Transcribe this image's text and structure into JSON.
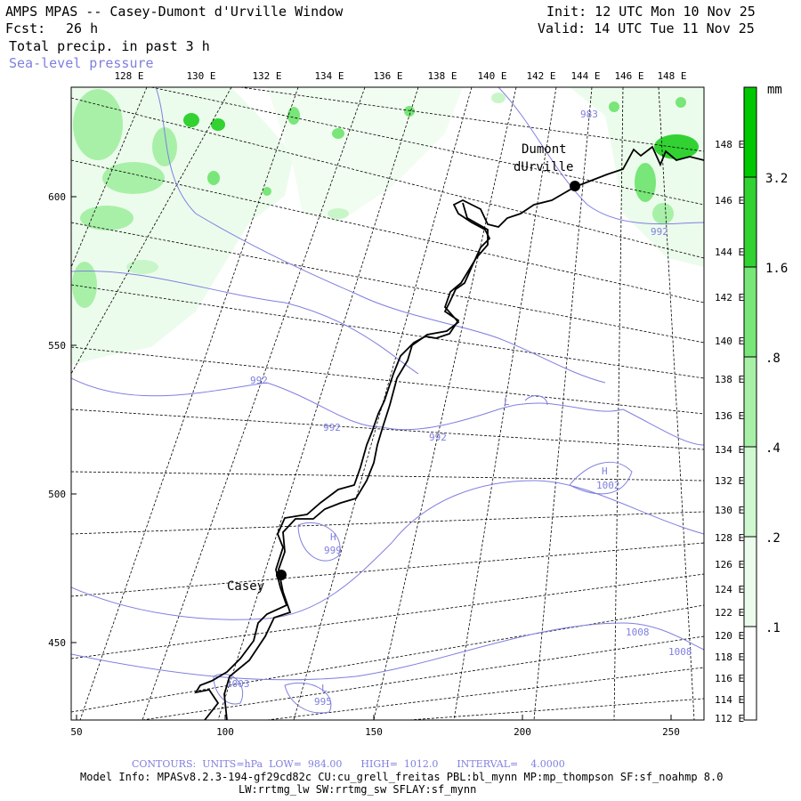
{
  "header": {
    "title": "AMPS MPAS -- Casey-Dumont d'Urville Window",
    "fcst_label": "Fcst:",
    "fcst_value": "26 h",
    "variable": "Total precip. in past 3 h",
    "overlay": "Sea-level pressure",
    "init": "Init: 12 UTC Mon 10 Nov 25",
    "valid": "Valid: 14 UTC Tue 11 Nov 25"
  },
  "map": {
    "x_ticks": [
      "50",
      "100",
      "150",
      "200",
      "250"
    ],
    "y_ticks": [
      "450",
      "500",
      "550",
      "600"
    ],
    "lon_top": [
      "128 E",
      "130 E",
      "132 E",
      "134 E",
      "136 E",
      "138 E",
      "140 E",
      "142 E",
      "144 E",
      "146 E",
      "148 E"
    ],
    "lon_right": [
      "148 E",
      "146 E",
      "144 E",
      "142 E",
      "140 E",
      "138 E",
      "136 E",
      "134 E",
      "132 E",
      "130 E",
      "128 E",
      "126 E",
      "124 E",
      "122 E",
      "120 E",
      "118 E",
      "116 E",
      "114 E",
      "112 E"
    ],
    "stations": [
      {
        "label1": "Dumont",
        "label2": "dUrville"
      },
      {
        "label1": "Casey"
      }
    ],
    "contour_labels": [
      "983",
      "992",
      "992",
      "992",
      "992",
      "H",
      "1002",
      "H",
      "999",
      "1008",
      "1008",
      "1003",
      "L",
      "995",
      "L"
    ]
  },
  "colorbar": {
    "unit": "mm",
    "labels": [
      "3.2",
      "1.6",
      ".8",
      ".4",
      ".2",
      ".1"
    ],
    "colors": [
      "#00c800",
      "#32d232",
      "#78e678",
      "#a8f0a8",
      "#d0f8d0",
      "#ecfcec"
    ]
  },
  "footer": {
    "contours": "CONTOURS:  UNITS=hPa  LOW=  984.00      HIGH=  1012.0      INTERVAL=    4.0000",
    "model_info": "Model Info: MPASv8.2.3-194-gf29cd82c CU:cu_grell_freitas PBL:bl_mynn MP:mp_thompson SF:sf_noahmp 8.0",
    "model_info2": "LW:rrtmg_lw SW:rrtmg_sw SFLAY:sf_mynn"
  }
}
